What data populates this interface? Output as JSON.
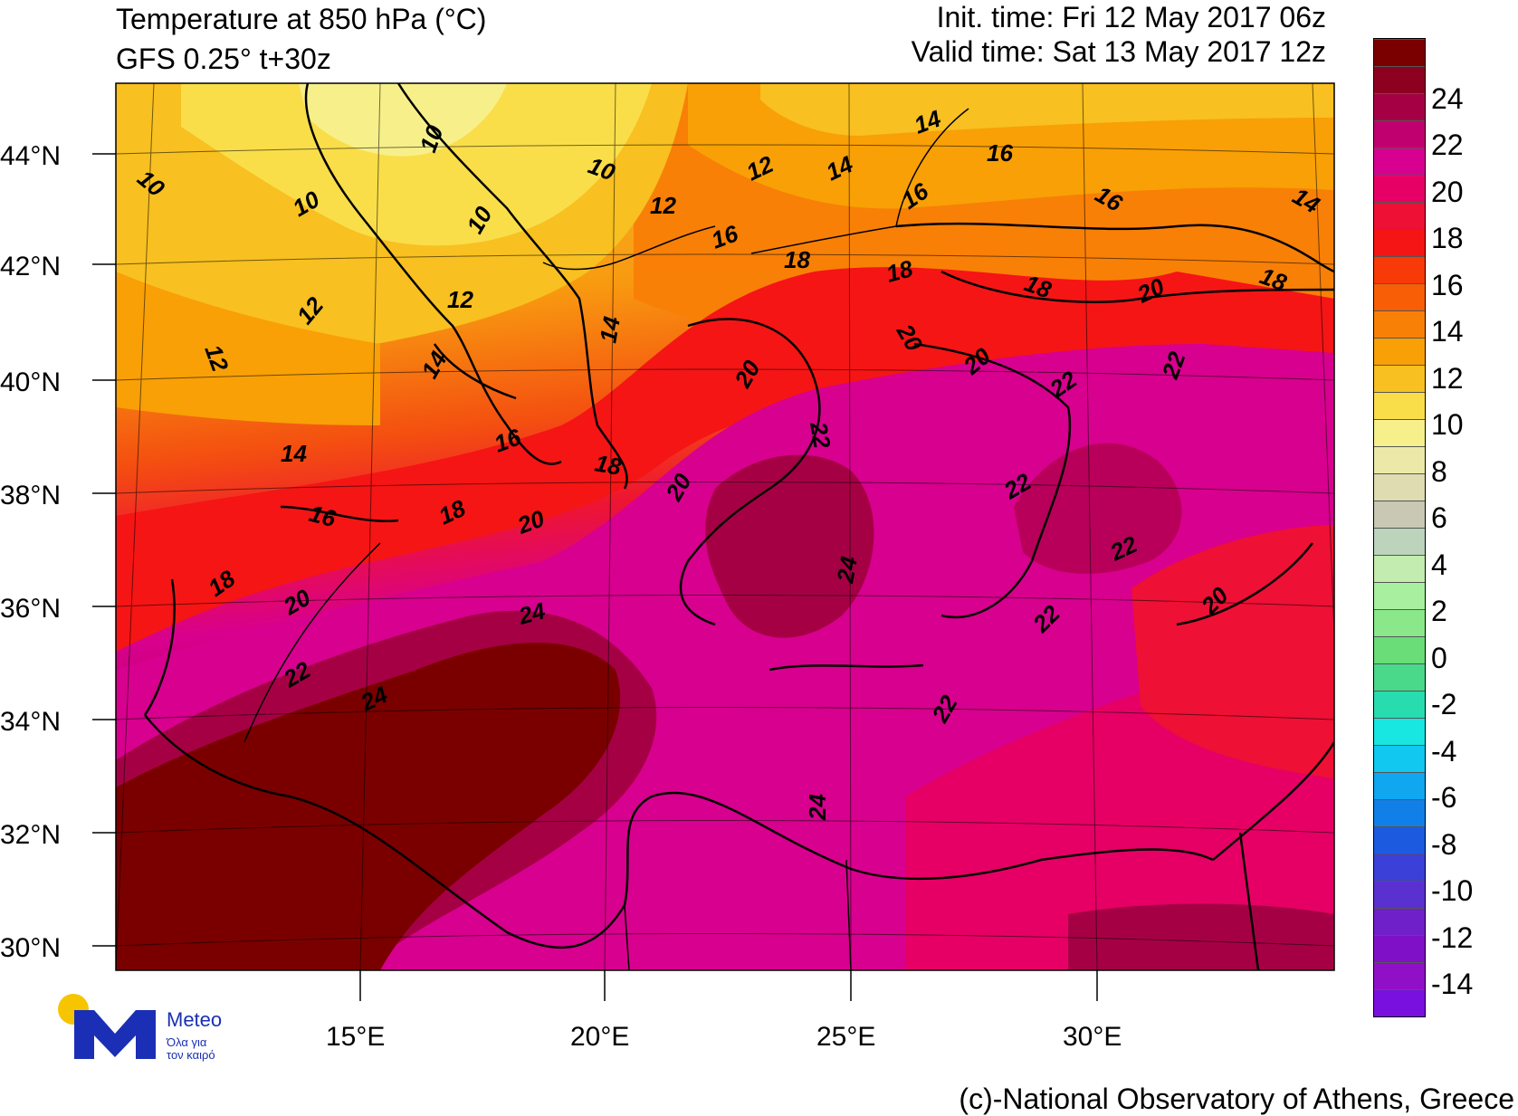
{
  "header": {
    "title_line1": "Temperature at 850 hPa (°C)",
    "title_line2": "GFS 0.25° t+30z",
    "init_time": "Init. time: Fri 12 May 2017 06z",
    "valid_time": "Valid time: Sat 13 May 2017 12z"
  },
  "map": {
    "lat_labels": [
      "44°N",
      "42°N",
      "40°N",
      "38°N",
      "36°N",
      "34°N",
      "32°N",
      "30°N"
    ],
    "lon_labels": [
      "15°E",
      "20°E",
      "25°E",
      "30°E"
    ],
    "contour_labels": [
      "10",
      "10",
      "10",
      "10",
      "10",
      "12",
      "12",
      "12",
      "12",
      "12",
      "14",
      "14",
      "14",
      "14",
      "14",
      "14",
      "16",
      "16",
      "16",
      "16",
      "16",
      "16",
      "18",
      "18",
      "18",
      "18",
      "18",
      "18",
      "18",
      "20",
      "20",
      "20",
      "20",
      "20",
      "20",
      "20",
      "20",
      "22",
      "22",
      "22",
      "22",
      "22",
      "22",
      "22",
      "22",
      "24",
      "24",
      "24",
      "24"
    ]
  },
  "legend": {
    "ticks": [
      "24",
      "22",
      "20",
      "18",
      "16",
      "14",
      "12",
      "10",
      "8",
      "6",
      "4",
      "2",
      "0",
      "-2",
      "-4",
      "-6",
      "-8",
      "-10",
      "-12",
      "-14"
    ],
    "colors": [
      "#7a0000",
      "#8e0020",
      "#a60045",
      "#c0006e",
      "#d8008e",
      "#e60065",
      "#ee1035",
      "#f51515",
      "#f83a08",
      "#f85e05",
      "#f88006",
      "#f8a006",
      "#f8c020",
      "#f9de4a",
      "#f7f08a",
      "#ece9a8",
      "#dedcb0",
      "#c8c8b4",
      "#bcd4bc",
      "#c2ecb0",
      "#a8f0a0",
      "#8ae88a",
      "#6adc78",
      "#4ad88a",
      "#28dcb0",
      "#18e6e0",
      "#10c8f0",
      "#10a6f0",
      "#1080e8",
      "#1c5ae0",
      "#3a40d8",
      "#5a30d0",
      "#7020c8",
      "#8010c8",
      "#9010c8",
      "#7a10e0"
    ]
  },
  "colors": {
    "deep_red": "#7a0000",
    "magenta": "#d8008e",
    "red": "#f51515",
    "orange": "#f88006",
    "yellow": "#f9de4a"
  },
  "logo": {
    "name": "Meteo",
    "tagline_1": "Όλα για",
    "tagline_2": "τον καιρό"
  },
  "credit": "(c)-National Observatory of Athens, Greece"
}
